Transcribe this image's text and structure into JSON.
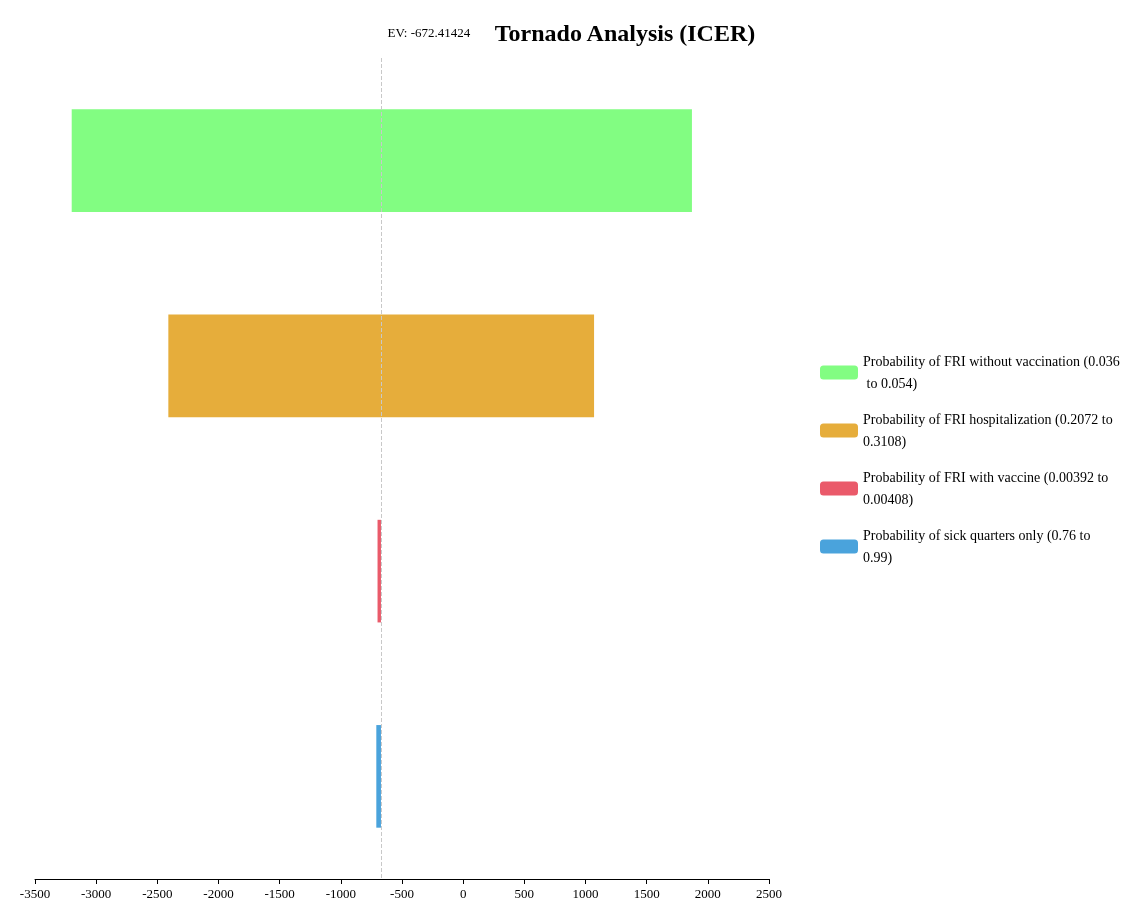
{
  "chart_data": {
    "type": "bar",
    "orientation": "horizontal",
    "title": "Tornado Analysis (ICER)",
    "categories": [
      null,
      null,
      null,
      null
    ],
    "series": [
      {
        "name": "Probability of FRI without vaccination (0.036 to 0.054)",
        "color": "#82fd82",
        "values": [
          5070,
          null,
          null,
          null
        ],
        "base": [
          -3200,
          null,
          null,
          null
        ]
      },
      {
        "name": "Probability of FRI hospitalization (0.2072 to 0.3108)",
        "color": "#e6ad3b",
        "values": [
          null,
          3480,
          null,
          null
        ],
        "base": [
          null,
          -2410,
          null,
          null
        ]
      },
      {
        "name": "Probability of FRI with vaccine (0.00392 to 0.00408)",
        "color": "#ea5a6a",
        "values": [
          null,
          null,
          28,
          null
        ],
        "base": [
          null,
          null,
          -700,
          null
        ]
      },
      {
        "name": "Probability of sick quarters only (0.76 to 0.99)",
        "color": "#4aa3dc",
        "values": [
          null,
          null,
          null,
          38
        ],
        "base": [
          null,
          null,
          null,
          -710
        ]
      }
    ],
    "xlim": [
      -3500,
      2500
    ],
    "xticks": [
      -3500,
      -3000,
      -2500,
      -2000,
      -1500,
      -1000,
      -500,
      0,
      500,
      1000,
      1500,
      2000,
      2500
    ],
    "ref_lines": [
      {
        "axis": "x",
        "value": -672.41424,
        "label": "EV: -672.41424",
        "color": "#c8c8c8",
        "line_style": "dashed"
      }
    ],
    "grid": false,
    "legend": "right",
    "tick_labels": "x"
  }
}
